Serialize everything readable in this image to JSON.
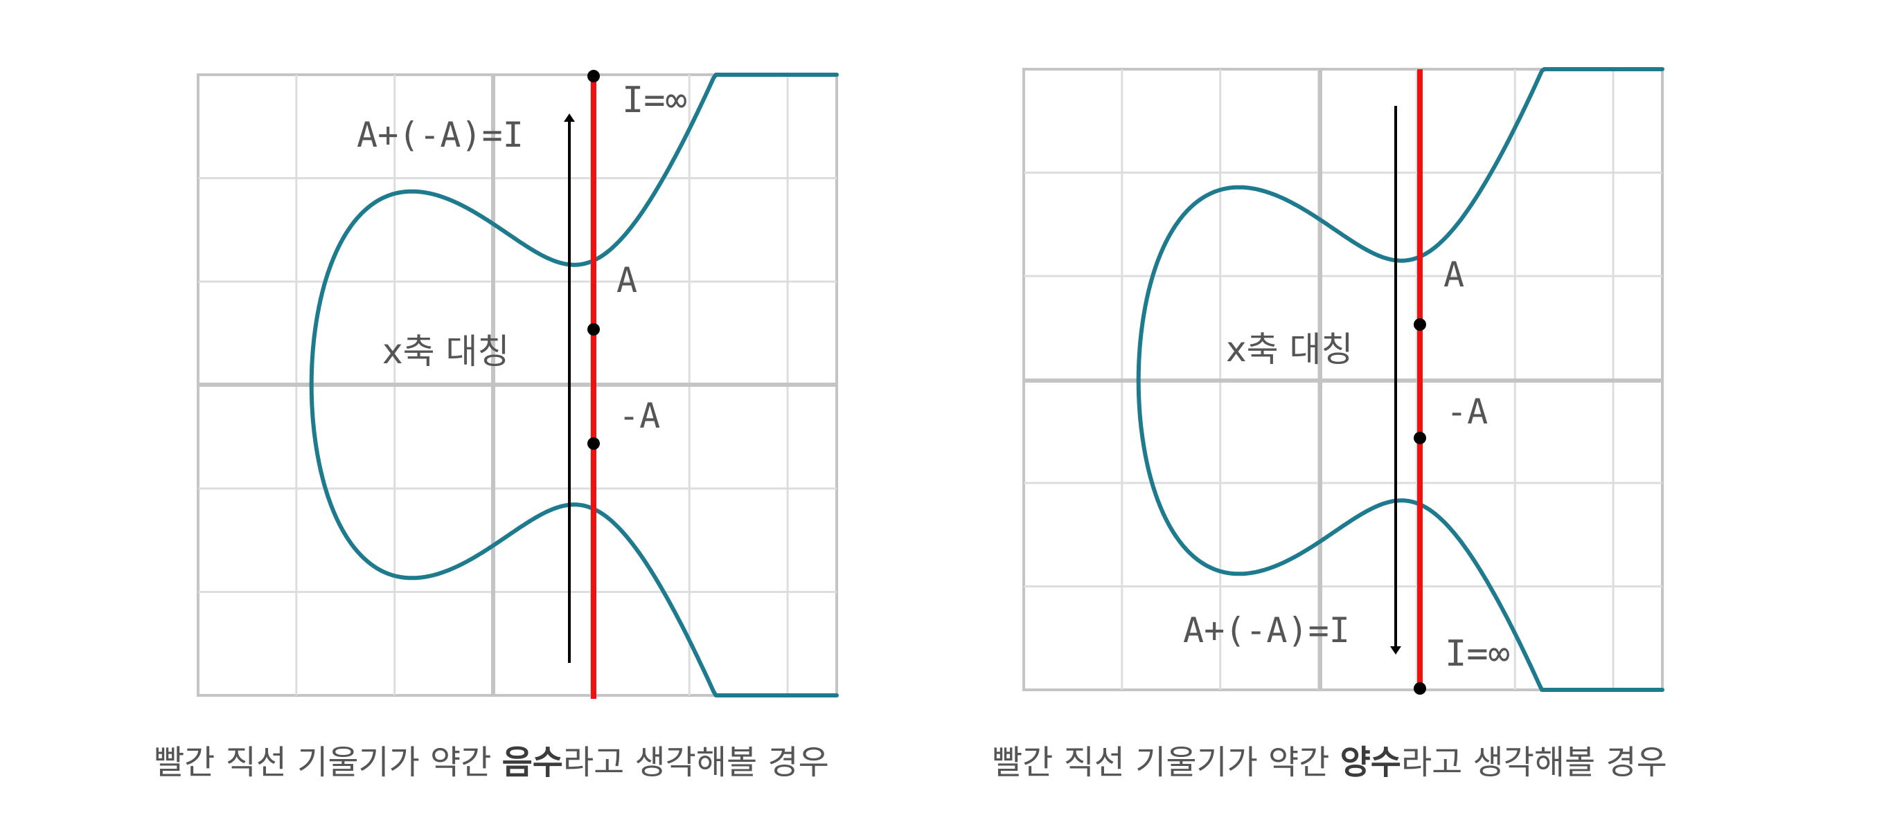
{
  "colors": {
    "curve": "#1e7b8e",
    "line": "#ee1111",
    "grid": "#dddddd",
    "axis": "#c4c4c4",
    "text": "#555555",
    "point": "#000000",
    "arrow": "#000000"
  },
  "panels": [
    {
      "id": "left",
      "curve": "y^2 = x^3 - 2x + 2 (approx, pictured)",
      "labels": {
        "infinity": "I=∞",
        "sum": "A+(-A)=I",
        "point_a": "A",
        "point_neg_a": "-A",
        "symmetry": "x축 대칭"
      },
      "caption": {
        "prefix": "빨간 직선 기울기가 약간 ",
        "emphasis": "음수",
        "suffix": "라고 생각해볼 경우"
      },
      "arrow_direction": "up"
    },
    {
      "id": "right",
      "labels": {
        "infinity": "I=∞",
        "sum": "A+(-A)=I",
        "point_a": "A",
        "point_neg_a": "-A",
        "symmetry": "x축 대칭"
      },
      "caption": {
        "prefix": "빨간 직선 기울기가 약간 ",
        "emphasis": "양수",
        "suffix": "라고 생각해볼 경우"
      },
      "arrow_direction": "down"
    }
  ]
}
